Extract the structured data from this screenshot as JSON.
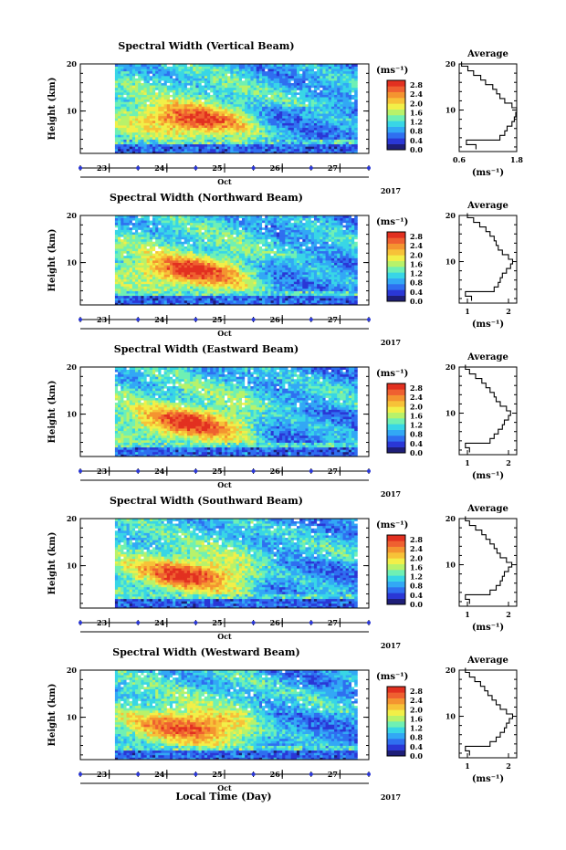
{
  "figure": {
    "xlabel_global": "Local Time (Day)",
    "month_label": "Oct",
    "year_label": "2017",
    "cbar_unit": "(ms⁻¹)",
    "avg_title": "Average",
    "avg_xlabel": "(ms⁻¹)",
    "ylabel": "Height (km)"
  },
  "colors": {
    "scale": [
      "#1e1e78",
      "#2a37d6",
      "#2f6ff0",
      "#32a8f5",
      "#38d6e6",
      "#6ff0b4",
      "#b8f26a",
      "#f2ef48",
      "#f7c238",
      "#f49430",
      "#ef6030",
      "#e23020"
    ]
  },
  "chart_data": [
    {
      "type": "heatmap",
      "title": "Spectral Width (Vertical Beam)",
      "xlabel": "Oct",
      "ylabel": "Height (km)",
      "x_ticks": [
        "23",
        "24",
        "25",
        "26",
        "27"
      ],
      "y_ticks": [
        "20",
        "10"
      ],
      "xlim": [
        22.5,
        27.5
      ],
      "data_xrange": [
        23.1,
        27.3
      ],
      "ylim": [
        1,
        20
      ],
      "colorbar": {
        "label": "(ms⁻¹)",
        "ticks": [
          "2.8",
          "2.4",
          "2.0",
          "1.6",
          "1.2",
          "0.8",
          "0.4",
          "0.0"
        ],
        "range": [
          0,
          3.0
        ]
      },
      "average_profile": {
        "xlabel": "(ms⁻¹)",
        "x_ticks": [
          "0.6",
          "1.8"
        ],
        "xlim": [
          0.6,
          1.8
        ],
        "heights_km": [
          2,
          3,
          4,
          5,
          6,
          7,
          8,
          9,
          10,
          11,
          12,
          13,
          14,
          15,
          16,
          17,
          18,
          19,
          20
        ],
        "values": [
          0.95,
          0.75,
          1.45,
          1.55,
          1.6,
          1.7,
          1.75,
          1.78,
          1.8,
          1.7,
          1.55,
          1.45,
          1.38,
          1.3,
          1.15,
          1.05,
          0.9,
          0.78,
          0.65
        ]
      }
    },
    {
      "type": "heatmap",
      "title": "Spectral Width (Northward Beam)",
      "xlabel": "Oct",
      "ylabel": "Height (km)",
      "x_ticks": [
        "23",
        "24",
        "25",
        "26",
        "27"
      ],
      "y_ticks": [
        "20",
        "10"
      ],
      "xlim": [
        22.5,
        27.5
      ],
      "data_xrange": [
        23.1,
        27.3
      ],
      "ylim": [
        1,
        20
      ],
      "colorbar": {
        "label": "(ms⁻¹)",
        "ticks": [
          "2.8",
          "2.4",
          "2.0",
          "1.6",
          "1.2",
          "0.8",
          "0.4",
          "0.0"
        ],
        "range": [
          0,
          3.0
        ]
      },
      "average_profile": {
        "xlabel": "(ms⁻¹)",
        "x_ticks": [
          "1",
          "2"
        ],
        "xlim": [
          0.8,
          2.2
        ],
        "heights_km": [
          2,
          3,
          4,
          5,
          6,
          7,
          8,
          9,
          10,
          11,
          12,
          13,
          14,
          15,
          16,
          17,
          18,
          19,
          20
        ],
        "values": [
          1.1,
          0.95,
          1.65,
          1.75,
          1.8,
          1.85,
          1.95,
          2.05,
          2.1,
          2.0,
          1.85,
          1.75,
          1.7,
          1.65,
          1.55,
          1.45,
          1.3,
          1.15,
          1.0
        ]
      }
    },
    {
      "type": "heatmap",
      "title": "Spectral Width (Eastward Beam)",
      "xlabel": "Oct",
      "ylabel": "Height (km)",
      "x_ticks": [
        "23",
        "24",
        "25",
        "26",
        "27"
      ],
      "y_ticks": [
        "20",
        "10"
      ],
      "xlim": [
        22.5,
        27.5
      ],
      "data_xrange": [
        23.1,
        27.3
      ],
      "ylim": [
        1,
        20
      ],
      "colorbar": {
        "label": "(ms⁻¹)",
        "ticks": [
          "2.8",
          "2.4",
          "2.0",
          "1.6",
          "1.2",
          "0.8",
          "0.4",
          "0.0"
        ],
        "range": [
          0,
          3.0
        ]
      },
      "average_profile": {
        "xlabel": "(ms⁻¹)",
        "x_ticks": [
          "1",
          "2"
        ],
        "xlim": [
          0.8,
          2.2
        ],
        "heights_km": [
          2,
          3,
          4,
          5,
          6,
          7,
          8,
          9,
          10,
          11,
          12,
          13,
          14,
          15,
          16,
          17,
          18,
          19,
          20
        ],
        "values": [
          1.05,
          0.95,
          1.55,
          1.65,
          1.75,
          1.85,
          1.9,
          2.0,
          2.05,
          1.95,
          1.8,
          1.7,
          1.65,
          1.55,
          1.45,
          1.35,
          1.2,
          1.05,
          0.95
        ]
      }
    },
    {
      "type": "heatmap",
      "title": "Spectral Width (Southward Beam)",
      "xlabel": "Oct",
      "ylabel": "Height (km)",
      "x_ticks": [
        "23",
        "24",
        "25",
        "26",
        "27"
      ],
      "y_ticks": [
        "20",
        "10"
      ],
      "xlim": [
        22.5,
        27.5
      ],
      "data_xrange": [
        23.1,
        27.3
      ],
      "ylim": [
        1,
        20
      ],
      "colorbar": {
        "label": "(ms⁻¹)",
        "ticks": [
          "2.8",
          "2.4",
          "2.0",
          "1.6",
          "1.2",
          "0.8",
          "0.4",
          "0.0"
        ],
        "range": [
          0,
          3.0
        ]
      },
      "average_profile": {
        "xlabel": "(ms⁻¹)",
        "x_ticks": [
          "1",
          "2"
        ],
        "xlim": [
          0.8,
          2.2
        ],
        "heights_km": [
          2,
          3,
          4,
          5,
          6,
          7,
          8,
          9,
          10,
          11,
          12,
          13,
          14,
          15,
          16,
          17,
          18,
          19,
          20
        ],
        "values": [
          1.05,
          0.95,
          1.55,
          1.7,
          1.8,
          1.85,
          1.9,
          2.0,
          2.08,
          1.95,
          1.8,
          1.72,
          1.65,
          1.55,
          1.45,
          1.35,
          1.2,
          1.05,
          0.95
        ]
      }
    },
    {
      "type": "heatmap",
      "title": "Spectral Width (Westward Beam)",
      "xlabel": "Oct",
      "ylabel": "Height (km)",
      "x_ticks": [
        "23",
        "24",
        "25",
        "26",
        "27"
      ],
      "y_ticks": [
        "20",
        "10"
      ],
      "xlim": [
        22.5,
        27.5
      ],
      "data_xrange": [
        23.1,
        27.3
      ],
      "ylim": [
        1,
        20
      ],
      "colorbar": {
        "label": "(ms⁻¹)",
        "ticks": [
          "2.8",
          "2.4",
          "2.0",
          "1.6",
          "1.2",
          "0.8",
          "0.4",
          "0.0"
        ],
        "range": [
          0,
          3.0
        ]
      },
      "average_profile": {
        "xlabel": "(ms⁻¹)",
        "x_ticks": [
          "1",
          "2"
        ],
        "xlim": [
          0.8,
          2.2
        ],
        "heights_km": [
          2,
          3,
          4,
          5,
          6,
          7,
          8,
          9,
          10,
          11,
          12,
          13,
          14,
          15,
          16,
          17,
          18,
          19,
          20
        ],
        "values": [
          1.05,
          0.95,
          1.55,
          1.7,
          1.8,
          1.9,
          1.95,
          2.02,
          2.1,
          1.95,
          1.8,
          1.7,
          1.6,
          1.5,
          1.42,
          1.32,
          1.18,
          1.05,
          0.95
        ]
      }
    }
  ]
}
